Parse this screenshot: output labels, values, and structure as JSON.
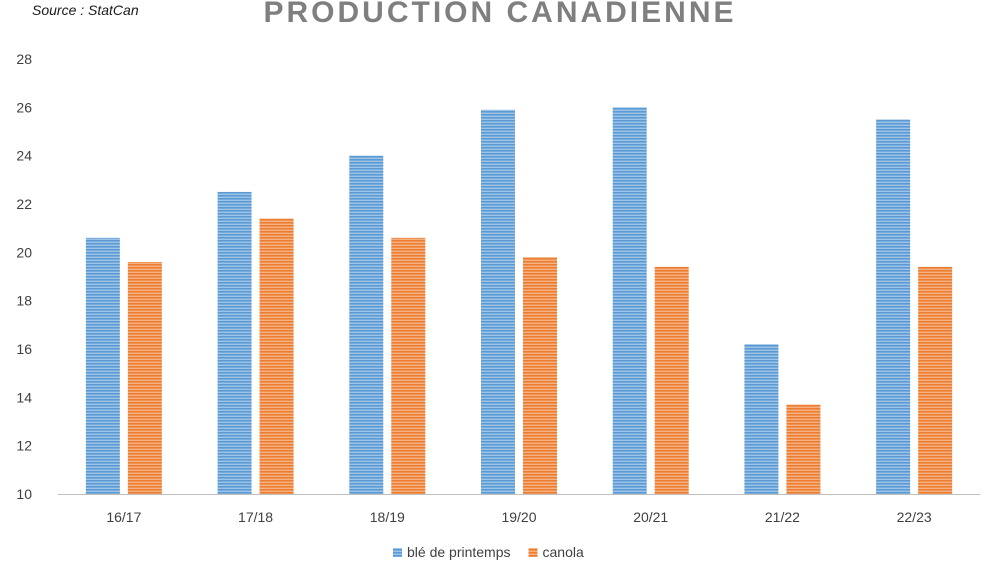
{
  "source_note": "Source : StatCan",
  "chart_data": {
    "type": "bar",
    "title": "PRODUCTION CANADIENNE",
    "xlabel": "",
    "ylabel": "",
    "categories": [
      "16/17",
      "17/18",
      "18/19",
      "19/20",
      "20/21",
      "21/22",
      "22/23"
    ],
    "series": [
      {
        "name": "blé de printemps",
        "color": "#5b9bd5",
        "values": [
          20.6,
          22.5,
          24.0,
          25.9,
          26.0,
          16.2,
          25.5
        ]
      },
      {
        "name": "canola",
        "color": "#ed7d31",
        "values": [
          19.6,
          21.4,
          20.6,
          19.8,
          19.4,
          13.7,
          19.4
        ]
      }
    ],
    "ylim": [
      10,
      28
    ],
    "yticks": [
      10,
      12,
      14,
      16,
      18,
      20,
      22,
      24,
      26,
      28
    ],
    "grid": false,
    "legend_position": "bottom"
  }
}
